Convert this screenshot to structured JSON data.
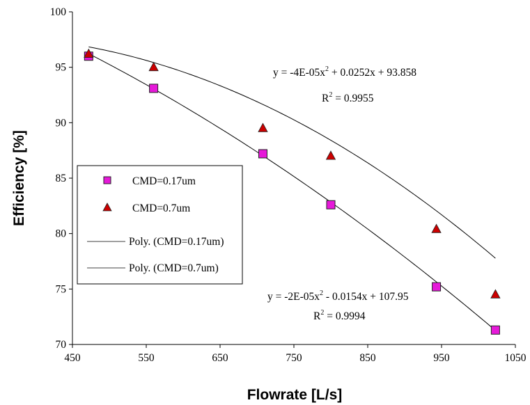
{
  "chart_data": {
    "type": "scatter",
    "xlabel": "Flowrate [L/s]",
    "ylabel": "Efficiency [%]",
    "xlim": [
      450,
      1050
    ],
    "ylim": [
      70,
      100
    ],
    "x_ticks": [
      450,
      550,
      650,
      750,
      850,
      950,
      1050
    ],
    "y_ticks": [
      70,
      75,
      80,
      85,
      90,
      95,
      100
    ],
    "x_tick_labels": [
      "450",
      "550",
      "650",
      "750",
      "850",
      "950",
      "1050"
    ],
    "y_tick_labels": [
      "70",
      "75",
      "80",
      "85",
      "90",
      "95",
      "100"
    ],
    "grid": false,
    "legend_position": "left",
    "series": [
      {
        "name": "CMD=0.17um",
        "marker": "square",
        "color": "#e619d9",
        "x": [
          472,
          560,
          708,
          800,
          943,
          1023
        ],
        "y": [
          96.0,
          93.1,
          87.2,
          82.6,
          75.2,
          71.3
        ]
      },
      {
        "name": "CMD=0.7um",
        "marker": "triangle",
        "color": "#cc0000",
        "x": [
          472,
          560,
          708,
          800,
          943,
          1023
        ],
        "y": [
          96.2,
          95.0,
          89.5,
          87.0,
          80.4,
          74.5
        ]
      }
    ],
    "trendlines": [
      {
        "name": "Poly. (CMD=0.17um)",
        "coef": [
          107.95,
          -0.0154,
          -2e-05
        ],
        "x_range": [
          472,
          1023
        ],
        "equation": "y = -2E-05x",
        "equation_rest": " - 0.0154x + 107.95",
        "r2": " = 0.9994"
      },
      {
        "name": "Poly. (CMD=0.7um)",
        "coef": [
          93.858,
          0.0252,
          -4e-05
        ],
        "x_range": [
          472,
          1023
        ],
        "equation": "y = -4E-05x",
        "equation_rest": " + 0.0252x + 93.858",
        "r2": " = 0.9955"
      }
    ]
  }
}
